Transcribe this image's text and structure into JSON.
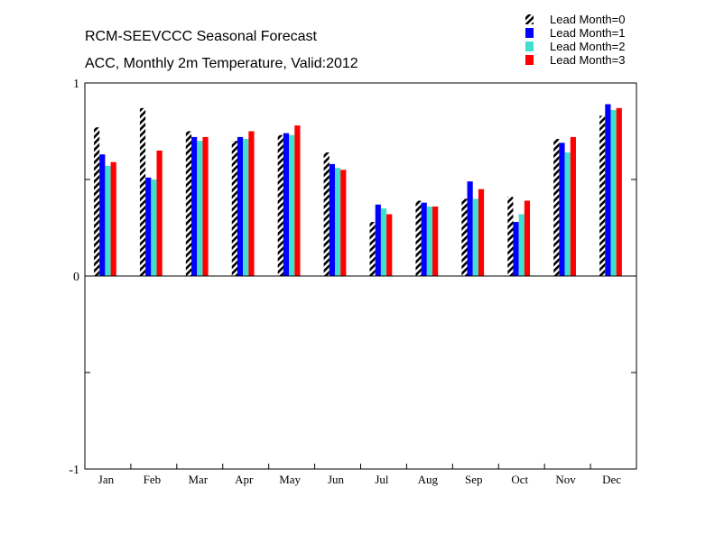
{
  "chart_data": {
    "type": "bar",
    "title": "RCM-SEEVCCC Seasonal Forecast",
    "subtitle": "ACC, Monthly 2m Temperature, Valid:2012",
    "xlabel": "",
    "ylabel": "",
    "ylim": [
      -1,
      1
    ],
    "yticks": [
      "1",
      "0",
      "-1"
    ],
    "categories": [
      "Jan",
      "Feb",
      "Mar",
      "Apr",
      "May",
      "Jun",
      "Jul",
      "Aug",
      "Sep",
      "Oct",
      "Nov",
      "Dec"
    ],
    "legend_position": "top-right",
    "grid": false,
    "series": [
      {
        "name": "Lead Month=0",
        "pattern": "hatched",
        "color": "#000000",
        "values": [
          0.77,
          0.87,
          0.75,
          0.7,
          0.73,
          0.64,
          0.28,
          0.39,
          0.4,
          0.41,
          0.71,
          0.83
        ]
      },
      {
        "name": "Lead Month=1",
        "color": "#0000ff",
        "values": [
          0.63,
          0.51,
          0.72,
          0.72,
          0.74,
          0.58,
          0.37,
          0.38,
          0.49,
          0.28,
          0.69,
          0.89
        ]
      },
      {
        "name": "Lead Month=2",
        "color": "#40e0d0",
        "values": [
          0.57,
          0.5,
          0.7,
          0.71,
          0.73,
          0.56,
          0.35,
          0.36,
          0.4,
          0.32,
          0.64,
          0.86
        ]
      },
      {
        "name": "Lead Month=3",
        "color": "#ff0000",
        "values": [
          0.59,
          0.65,
          0.72,
          0.75,
          0.78,
          0.55,
          0.32,
          0.36,
          0.45,
          0.39,
          0.72,
          0.87
        ]
      }
    ]
  }
}
